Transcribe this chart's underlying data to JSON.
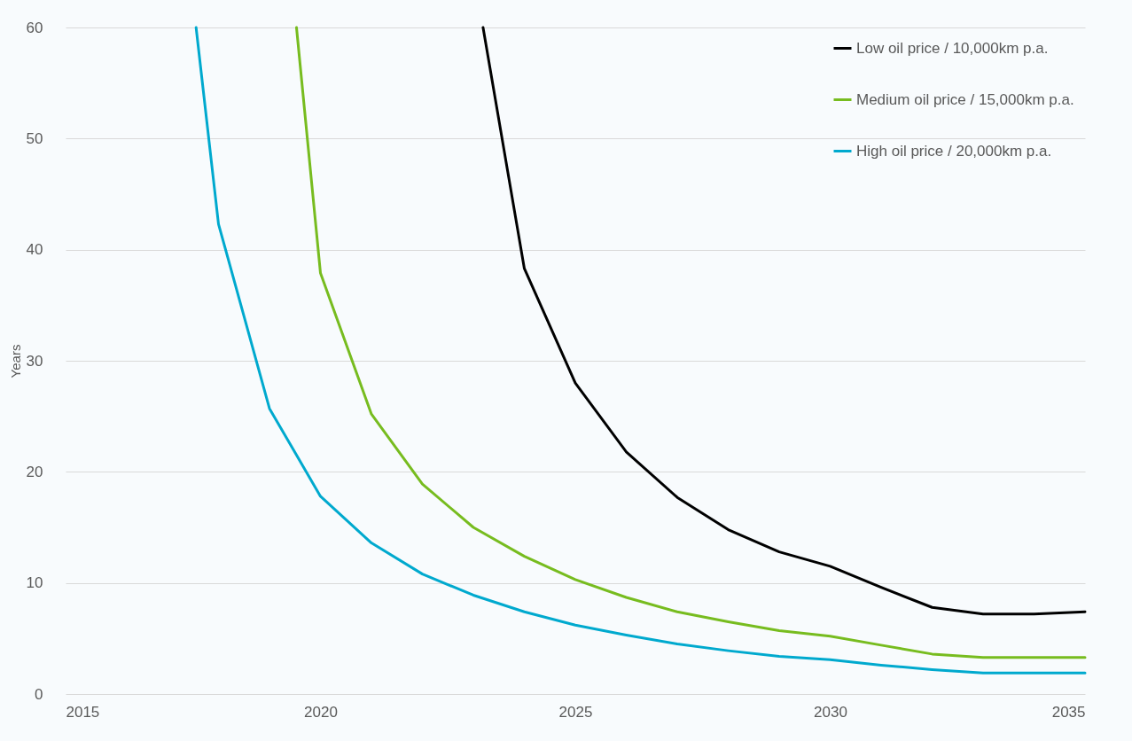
{
  "chart_data": {
    "type": "line",
    "ylabel": "Years",
    "xlim": [
      2015,
      2035
    ],
    "xticks": [
      2015,
      2020,
      2025,
      2030,
      2035
    ],
    "ylim": [
      0,
      60
    ],
    "yticks": [
      0,
      10,
      20,
      30,
      40,
      50,
      60
    ],
    "grid": "y",
    "legend": "top right",
    "line_style": "solid",
    "marker": "none",
    "series": [
      {
        "name": "Low oil price / 10,000km p.a.",
        "color": "#000000",
        "x": [
          2023.19,
          2024,
          2025,
          2026,
          2027,
          2028,
          2029,
          2030,
          2031,
          2032,
          2033,
          2034,
          2035
        ],
        "values": [
          60,
          38.3,
          28.0,
          21.8,
          17.7,
          14.8,
          12.8,
          11.5,
          9.6,
          7.8,
          7.2,
          7.2,
          7.4
        ]
      },
      {
        "name": "Medium oil price / 15,000km p.a.",
        "color": "#77bc1f",
        "x": [
          2019.53,
          2020,
          2021,
          2022,
          2023,
          2024,
          2025,
          2026,
          2027,
          2028,
          2029,
          2030,
          2031,
          2032,
          2033,
          2034,
          2035
        ],
        "values": [
          60,
          37.9,
          25.2,
          18.9,
          15.0,
          12.4,
          10.3,
          8.7,
          7.4,
          6.5,
          5.7,
          5.2,
          4.4,
          3.6,
          3.3,
          3.3,
          3.3
        ]
      },
      {
        "name": "High oil price / 20,000km p.a.",
        "color": "#00a9ce",
        "x": [
          2017.56,
          2018,
          2019,
          2020,
          2021,
          2022,
          2023,
          2024,
          2025,
          2026,
          2027,
          2028,
          2029,
          2030,
          2031,
          2032,
          2033,
          2034,
          2035
        ],
        "values": [
          60,
          42.3,
          25.7,
          17.8,
          13.6,
          10.8,
          8.9,
          7.4,
          6.2,
          5.3,
          4.5,
          3.9,
          3.4,
          3.1,
          2.6,
          2.2,
          1.9,
          1.9,
          1.9
        ]
      }
    ]
  }
}
